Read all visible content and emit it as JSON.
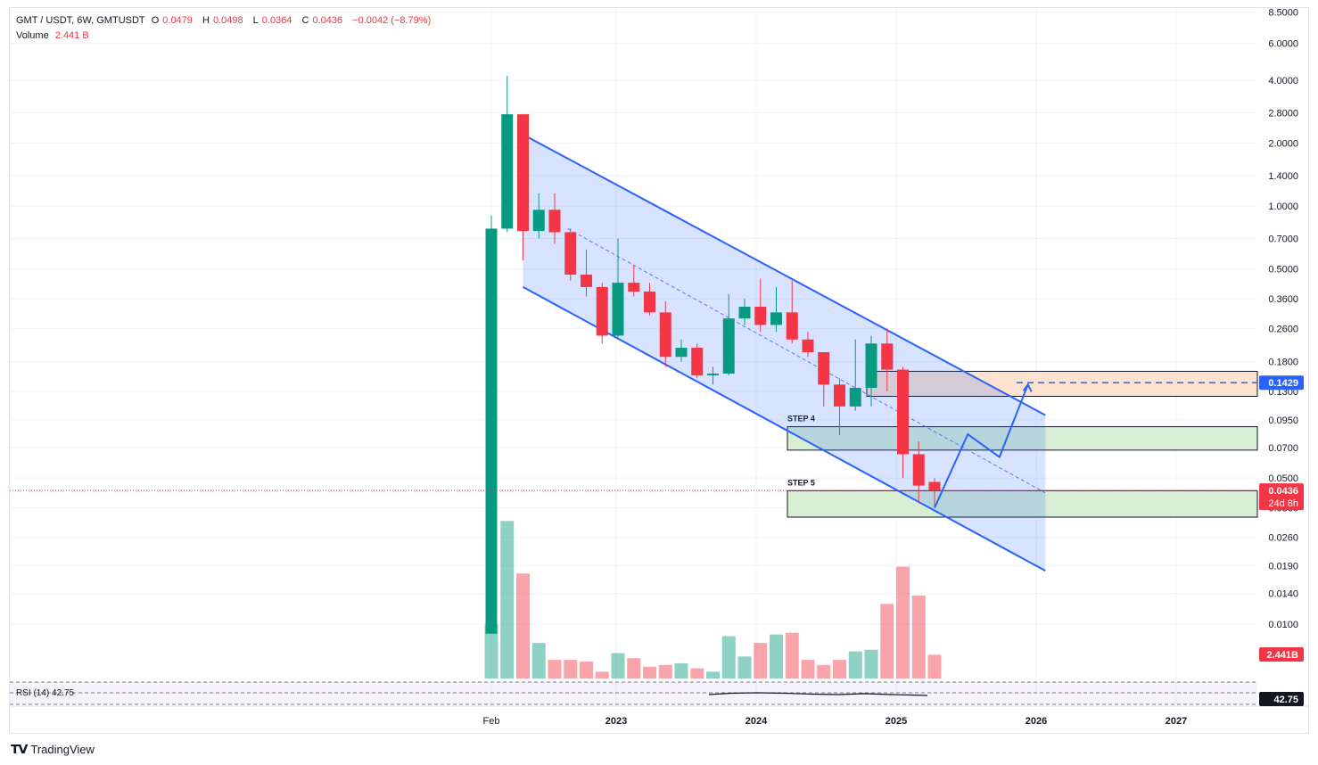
{
  "header": {
    "symbol": "GMT / USDT, 6W, GMTUSDT",
    "open_label": "O",
    "open": "0.0479",
    "high_label": "H",
    "high": "0.0498",
    "low_label": "L",
    "low": "0.0364",
    "close_label": "C",
    "close": "0.0436",
    "change": "−0.0042 (−8.79%)",
    "volume_label": "Volume",
    "volume": "2.441 B"
  },
  "branding": {
    "logo_text": "TradingView"
  },
  "colors": {
    "up": "#089981",
    "down": "#f23645",
    "channel": "#2962ff",
    "zone_green": "#d7eed5",
    "zone_orange": "#fde3cf",
    "rsi_line": "#131722"
  },
  "chart_data": {
    "type": "candlestick",
    "timeframe": "6W",
    "y_scale": "log",
    "y_ticks": [
      "8.5000",
      "6.0000",
      "4.0000",
      "2.8000",
      "2.0000",
      "1.4000",
      "1.0000",
      "0.7000",
      "0.5000",
      "0.3600",
      "0.2600",
      "0.1800",
      "0.1300",
      "0.0950",
      "0.0700",
      "0.0500",
      "0.0360",
      "0.0260",
      "0.0190",
      "0.0140",
      "0.0100"
    ],
    "x_ticks": [
      "Feb",
      "2023",
      "2024",
      "2025",
      "2026",
      "2027"
    ],
    "price_labels": {
      "last": "0.0436",
      "countdown": "24d 8h",
      "target": "0.1429",
      "volume": "2.441B",
      "rsi": "42.75"
    },
    "candles": [
      {
        "o": 0.009,
        "h": 0.9,
        "l": 0.009,
        "c": 0.78
      },
      {
        "o": 0.78,
        "h": 4.2,
        "l": 0.75,
        "c": 2.75
      },
      {
        "o": 2.75,
        "h": 2.75,
        "l": 0.55,
        "c": 0.76
      },
      {
        "o": 0.76,
        "h": 1.15,
        "l": 0.7,
        "c": 0.96
      },
      {
        "o": 0.96,
        "h": 1.15,
        "l": 0.66,
        "c": 0.75
      },
      {
        "o": 0.75,
        "h": 0.78,
        "l": 0.44,
        "c": 0.47
      },
      {
        "o": 0.47,
        "h": 0.62,
        "l": 0.37,
        "c": 0.41
      },
      {
        "o": 0.41,
        "h": 0.43,
        "l": 0.22,
        "c": 0.24
      },
      {
        "o": 0.24,
        "h": 0.7,
        "l": 0.23,
        "c": 0.43
      },
      {
        "o": 0.43,
        "h": 0.52,
        "l": 0.37,
        "c": 0.39
      },
      {
        "o": 0.39,
        "h": 0.43,
        "l": 0.3,
        "c": 0.31
      },
      {
        "o": 0.31,
        "h": 0.35,
        "l": 0.17,
        "c": 0.19
      },
      {
        "o": 0.19,
        "h": 0.23,
        "l": 0.18,
        "c": 0.21
      },
      {
        "o": 0.21,
        "h": 0.22,
        "l": 0.15,
        "c": 0.155
      },
      {
        "o": 0.155,
        "h": 0.17,
        "l": 0.14,
        "c": 0.158
      },
      {
        "o": 0.158,
        "h": 0.38,
        "l": 0.155,
        "c": 0.29
      },
      {
        "o": 0.29,
        "h": 0.36,
        "l": 0.27,
        "c": 0.33
      },
      {
        "o": 0.33,
        "h": 0.45,
        "l": 0.25,
        "c": 0.27
      },
      {
        "o": 0.27,
        "h": 0.41,
        "l": 0.25,
        "c": 0.31
      },
      {
        "o": 0.31,
        "h": 0.44,
        "l": 0.22,
        "c": 0.23
      },
      {
        "o": 0.23,
        "h": 0.25,
        "l": 0.19,
        "c": 0.2
      },
      {
        "o": 0.2,
        "h": 0.2,
        "l": 0.11,
        "c": 0.14
      },
      {
        "o": 0.14,
        "h": 0.15,
        "l": 0.08,
        "c": 0.11
      },
      {
        "o": 0.11,
        "h": 0.23,
        "l": 0.105,
        "c": 0.135
      },
      {
        "o": 0.135,
        "h": 0.24,
        "l": 0.11,
        "c": 0.22
      },
      {
        "o": 0.22,
        "h": 0.26,
        "l": 0.13,
        "c": 0.165
      },
      {
        "o": 0.165,
        "h": 0.17,
        "l": 0.05,
        "c": 0.065
      },
      {
        "o": 0.065,
        "h": 0.075,
        "l": 0.038,
        "c": 0.046
      },
      {
        "o": 0.0479,
        "h": 0.0498,
        "l": 0.0364,
        "c": 0.0436
      }
    ],
    "volume_rel": [
      0.32,
      0.93,
      0.62,
      0.21,
      0.11,
      0.11,
      0.1,
      0.04,
      0.15,
      0.12,
      0.07,
      0.08,
      0.09,
      0.06,
      0.04,
      0.25,
      0.13,
      0.21,
      0.26,
      0.27,
      0.11,
      0.08,
      0.11,
      0.16,
      0.17,
      0.44,
      0.66,
      0.49,
      0.14
    ],
    "rsi": {
      "label": "RSI (14)",
      "value": "42.75"
    },
    "annotations": {
      "step4": "STEP 4",
      "step5": "STEP 5"
    },
    "zones": {
      "step4": {
        "top": 0.088,
        "bottom": 0.068
      },
      "step5": {
        "top": 0.0435,
        "bottom": 0.0325
      },
      "target": {
        "top": 0.162,
        "bottom": 0.123
      }
    },
    "channel": {
      "upper_start": {
        "candle": 2,
        "price": 2.2
      },
      "upper_end": {
        "candle": 35,
        "price": 0.1
      },
      "lower_start": {
        "candle": 2,
        "price": 0.41
      },
      "lower_end": {
        "candle": 35,
        "price": 0.018
      }
    },
    "projection_path": [
      [
        28,
        0.036
      ],
      [
        30.1,
        0.081
      ],
      [
        32.1,
        0.063
      ],
      [
        33.9,
        0.14
      ]
    ]
  }
}
